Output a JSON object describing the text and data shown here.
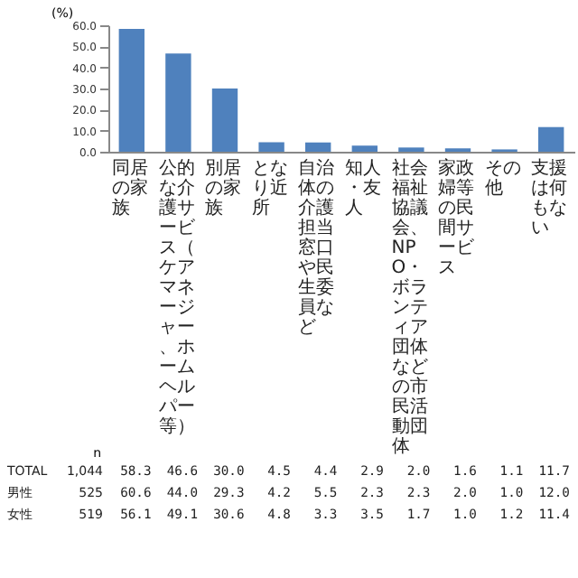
{
  "chart_data": {
    "type": "bar",
    "ylabel": "(%)",
    "categories": [
      "同居の家族",
      "公的な介護サービス（ケアマネージャー、ホームヘルパー等）",
      "別居の家族",
      "となり近所",
      "自治体の介護担当窓口や民生委員など",
      "知人・友人",
      "社会福祉協議会、NPO・ボランティア団体などの市民活動団体",
      "家政婦等の民間サービス",
      "その他",
      "支援は何もない"
    ],
    "values": [
      58.3,
      46.6,
      30.0,
      4.5,
      4.4,
      2.9,
      2.0,
      1.6,
      1.1,
      11.7
    ],
    "color": "#4f81bd",
    "ylim": [
      0,
      60
    ],
    "yticks": [
      {
        "value": 0,
        "label": "0.0"
      },
      {
        "value": 10,
        "label": "10.0"
      },
      {
        "value": 20,
        "label": "20.0"
      },
      {
        "value": 30,
        "label": "30.0"
      },
      {
        "value": 40,
        "label": "40.0"
      },
      {
        "value": 50,
        "label": "50.0"
      },
      {
        "value": 60,
        "label": "60.0"
      }
    ],
    "grid": false,
    "annotations": [
      "n",
      "TOTAL 1,044 58.3 46.6 30.0 4.5 4.4 2.9 2.0 1.6 1.1 11.7",
      "男性 525 60.6 44.0 29.3 4.2 5.5 2.3 2.3 2.0 1.0 12.0",
      "女性 519 56.1 49.1 30.6 4.8 3.3 3.5 1.7 1.0 1.2 11.4"
    ]
  }
}
